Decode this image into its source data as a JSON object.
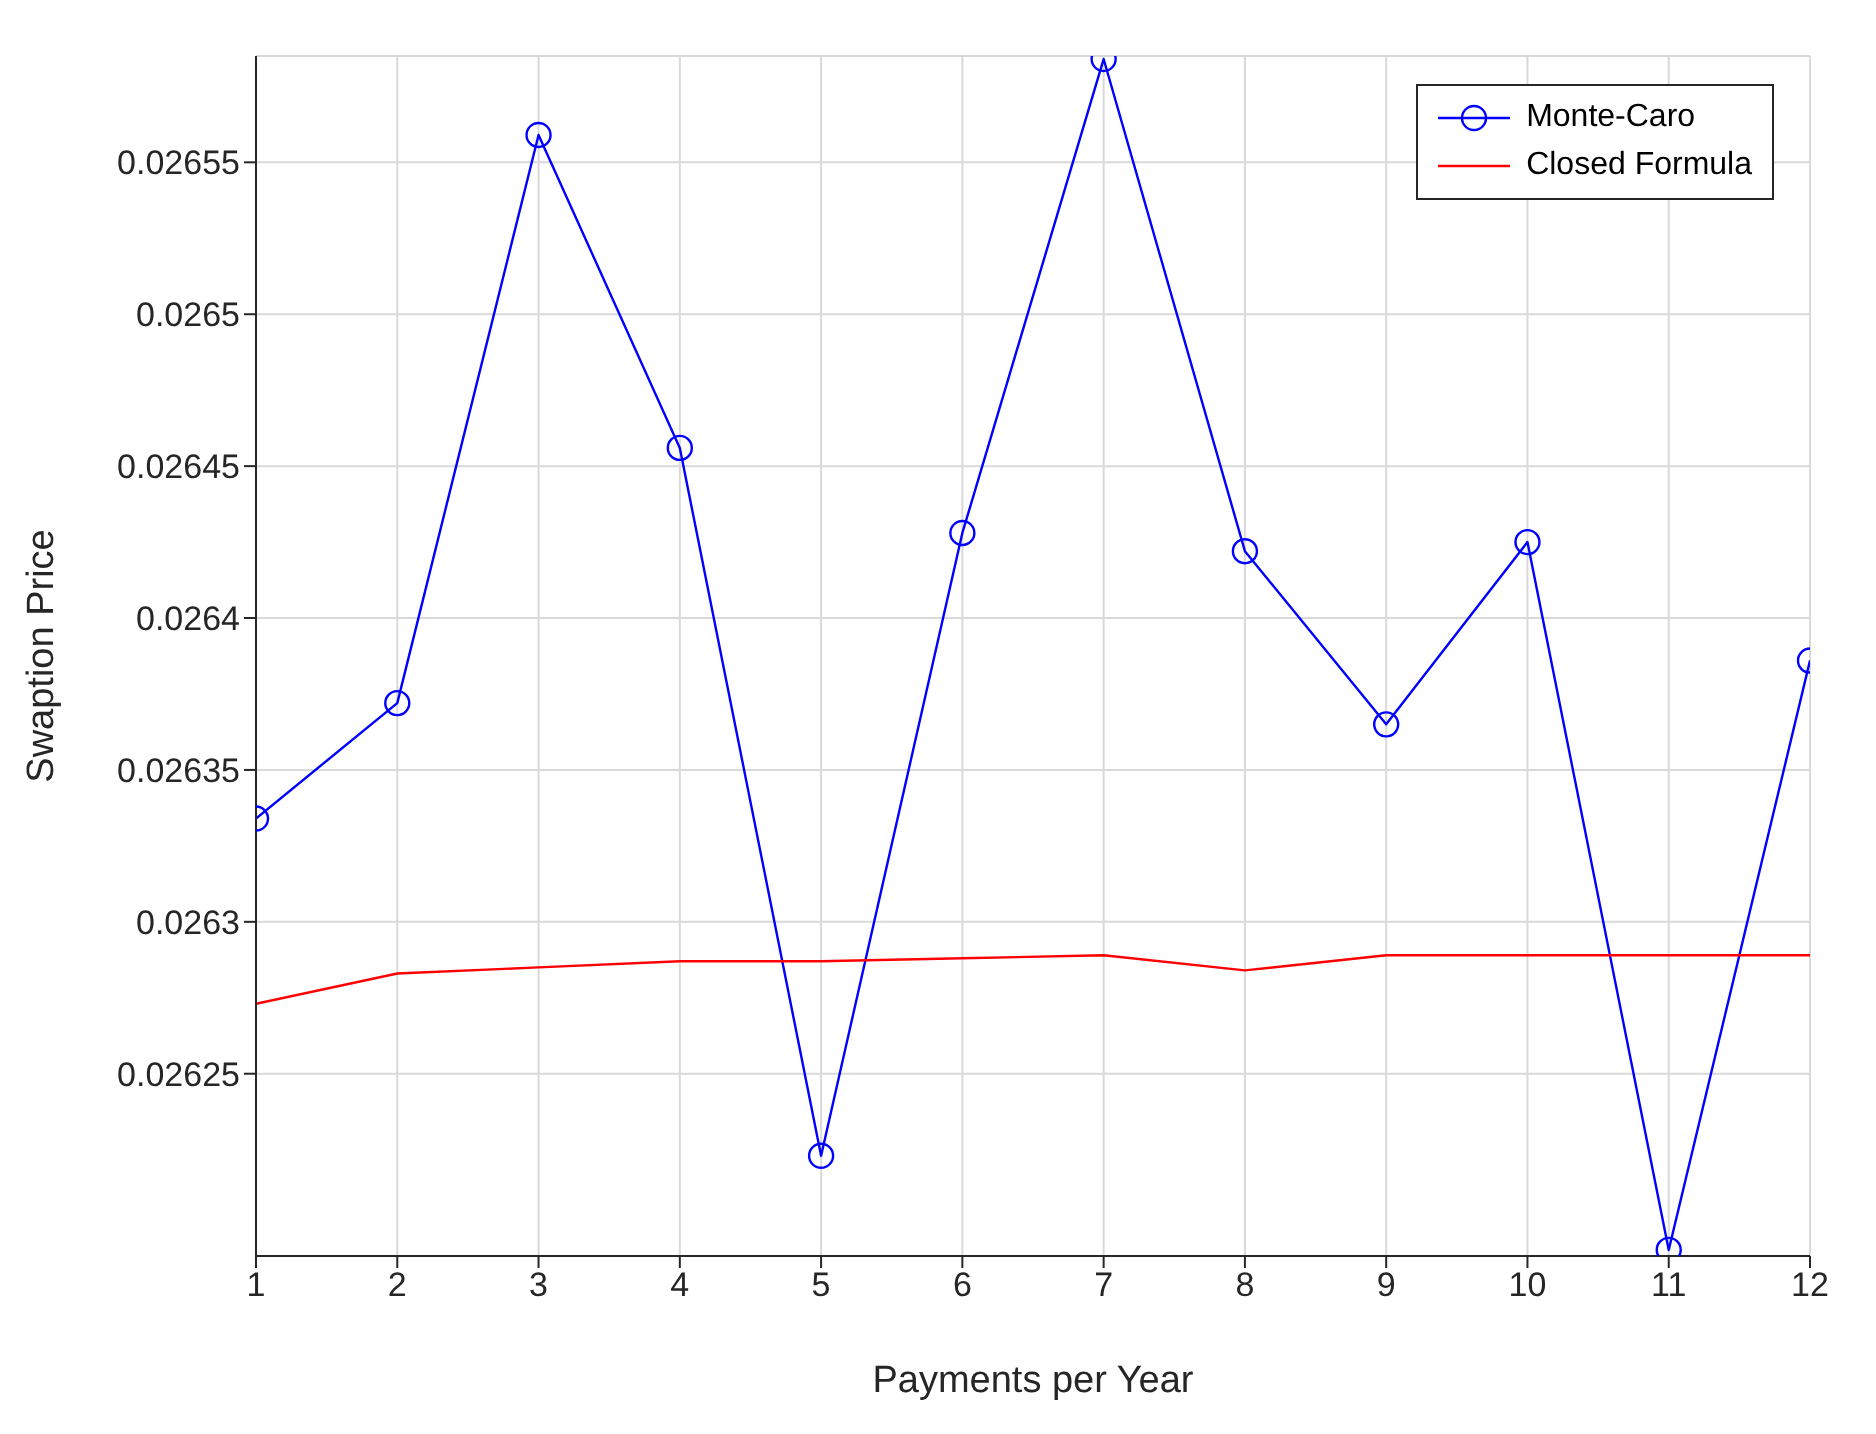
{
  "chart_data": {
    "type": "line",
    "xlabel": "Payments per Year",
    "ylabel": "Swaption Price",
    "x": [
      1,
      2,
      3,
      4,
      5,
      6,
      7,
      8,
      9,
      10,
      11,
      12
    ],
    "series": [
      {
        "name": "Monte-Caro",
        "color": "#0000ff",
        "marker": "circle",
        "values": [
          0.026334,
          0.026372,
          0.026559,
          0.026456,
          0.026223,
          0.026428,
          0.026584,
          0.026422,
          0.026365,
          0.026425,
          0.026192,
          0.026386
        ]
      },
      {
        "name": "Closed Formula",
        "color": "#ff0000",
        "marker": "none",
        "values": [
          0.026273,
          0.026283,
          0.026285,
          0.026287,
          0.026287,
          0.026288,
          0.026289,
          0.026284,
          0.026289,
          0.026289,
          0.026289,
          0.026289
        ]
      }
    ],
    "xlim": [
      1,
      12
    ],
    "xticks": [
      1,
      2,
      3,
      4,
      5,
      6,
      7,
      8,
      9,
      10,
      11,
      12
    ],
    "ylim": [
      0.02619,
      0.026585
    ],
    "yticks": [
      0.02625,
      0.0263,
      0.02635,
      0.0264,
      0.02645,
      0.0265,
      0.02655
    ],
    "grid": true,
    "legend": "top right",
    "line_style": "solid"
  }
}
